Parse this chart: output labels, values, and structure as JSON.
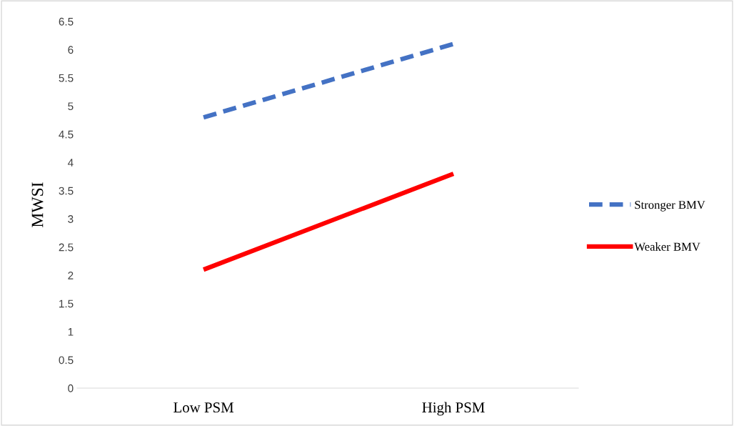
{
  "chart_data": {
    "type": "line",
    "ylabel": "MWSI",
    "categories": [
      "Low PSM",
      "High PSM"
    ],
    "series": [
      {
        "name": "Stronger BMV",
        "color": "#4472c4",
        "values": [
          4.8,
          6.1
        ],
        "line_style": "dashed"
      },
      {
        "name": "Weaker BMV",
        "color": "#ff0000",
        "values": [
          2.1,
          3.8
        ],
        "line_style": "solid"
      }
    ],
    "ylim": [
      0,
      6.5
    ],
    "yticks": [
      0,
      0.5,
      1,
      1.5,
      2,
      2.5,
      3,
      3.5,
      4,
      4.5,
      5,
      5.5,
      6,
      6.5
    ],
    "grid": false,
    "legend": "right",
    "marker": "none"
  }
}
